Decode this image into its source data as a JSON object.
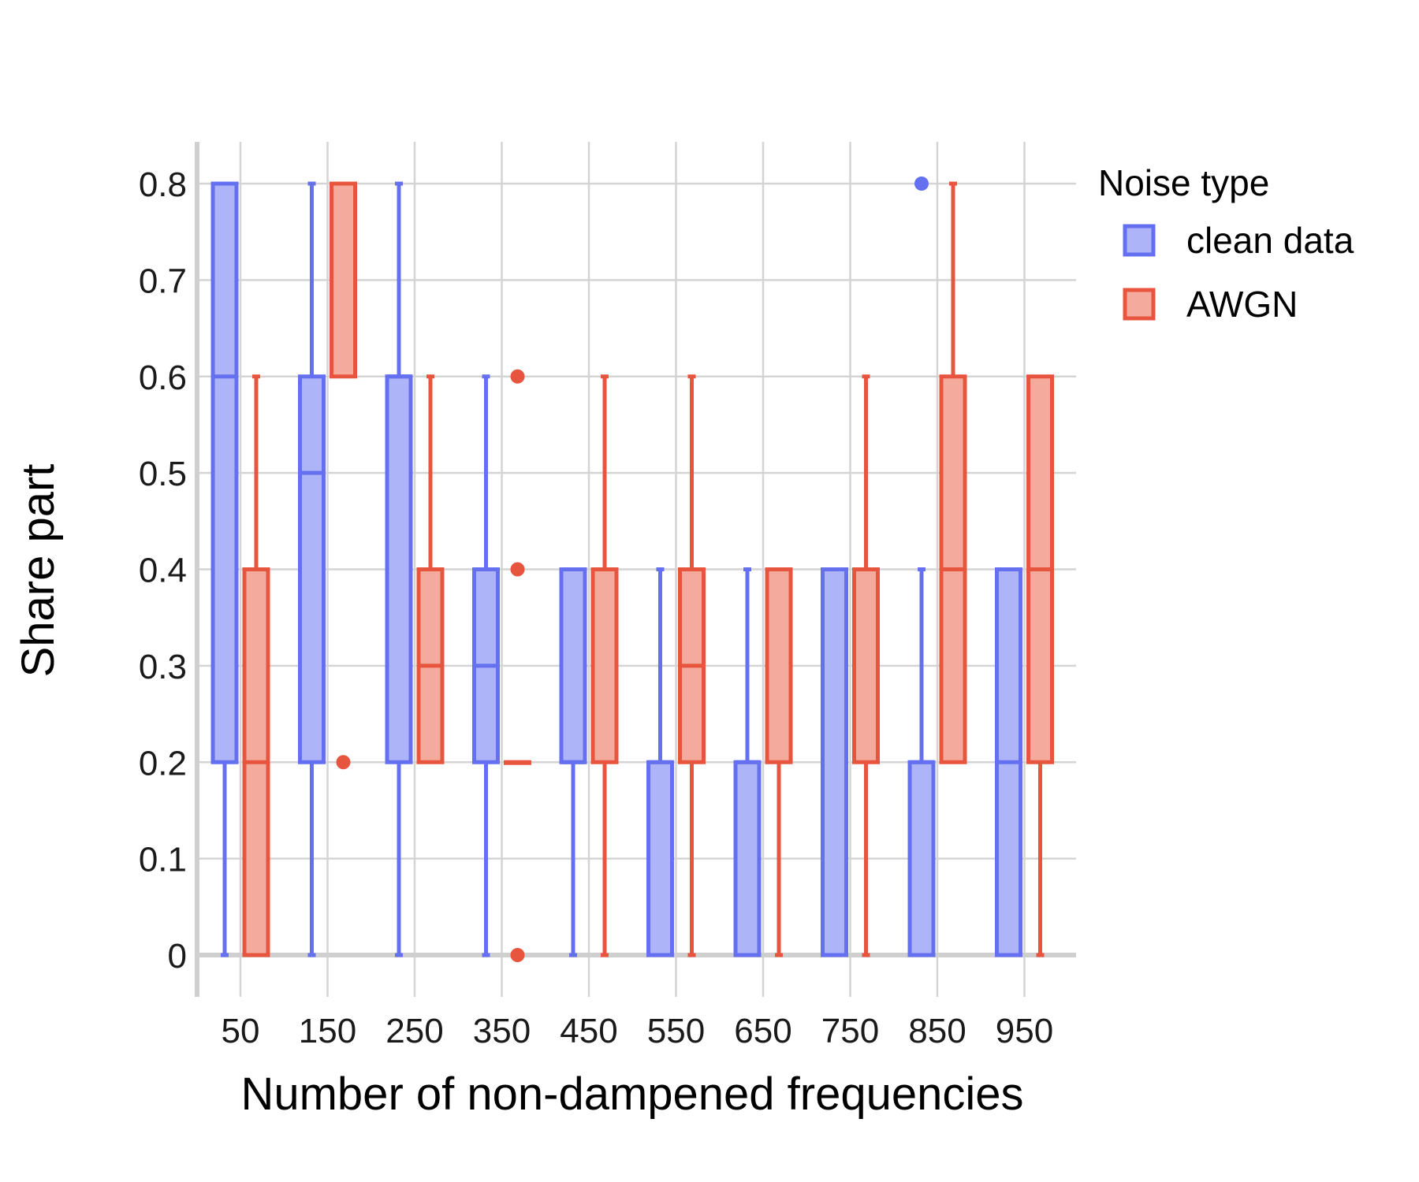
{
  "chart_data": {
    "type": "box",
    "title": "",
    "xlabel": "Number of non-dampened frequencies",
    "ylabel": "Share part",
    "categories": [
      "50",
      "150",
      "250",
      "350",
      "450",
      "550",
      "650",
      "750",
      "850",
      "950"
    ],
    "ylim": [
      -0.08,
      0.85
    ],
    "yticks": [
      0,
      0.1,
      0.2,
      0.3,
      0.4,
      0.5,
      0.6,
      0.7,
      0.8
    ],
    "ytick_labels": [
      "0",
      "0.1",
      "0.2",
      "0.3",
      "0.4",
      "0.5",
      "0.6",
      "0.7",
      "0.8"
    ],
    "grid": true,
    "legend": {
      "title": "Noise type",
      "position": "right"
    },
    "series": [
      {
        "name": "clean data",
        "color": "#6470f0",
        "fill": "#aeb4f8",
        "boxes": [
          {
            "category": "50",
            "whisker_low": 0,
            "q1": 0.2,
            "median": 0.6,
            "q3": 0.8,
            "whisker_high": 0.8,
            "outliers": []
          },
          {
            "category": "150",
            "whisker_low": 0,
            "q1": 0.2,
            "median": 0.5,
            "q3": 0.6,
            "whisker_high": 0.8,
            "outliers": []
          },
          {
            "category": "250",
            "whisker_low": 0,
            "q1": 0.2,
            "median": 0.6,
            "q3": 0.6,
            "whisker_high": 0.8,
            "outliers": []
          },
          {
            "category": "350",
            "whisker_low": 0,
            "q1": 0.2,
            "median": 0.3,
            "q3": 0.4,
            "whisker_high": 0.6,
            "outliers": []
          },
          {
            "category": "450",
            "whisker_low": 0,
            "q1": 0.2,
            "median": 0.2,
            "q3": 0.4,
            "whisker_high": 0.4,
            "outliers": []
          },
          {
            "category": "550",
            "whisker_low": 0,
            "q1": 0,
            "median": 0.2,
            "q3": 0.2,
            "whisker_high": 0.4,
            "outliers": []
          },
          {
            "category": "650",
            "whisker_low": 0,
            "q1": 0,
            "median": 0.2,
            "q3": 0.2,
            "whisker_high": 0.4,
            "outliers": []
          },
          {
            "category": "750",
            "whisker_low": 0,
            "q1": 0,
            "median": 0,
            "q3": 0.4,
            "whisker_high": 0.4,
            "outliers": []
          },
          {
            "category": "850",
            "whisker_low": 0,
            "q1": 0,
            "median": 0.2,
            "q3": 0.2,
            "whisker_high": 0.4,
            "outliers": [
              0.8
            ]
          },
          {
            "category": "950",
            "whisker_low": 0,
            "q1": 0,
            "median": 0.2,
            "q3": 0.4,
            "whisker_high": 0.4,
            "outliers": []
          }
        ]
      },
      {
        "name": "AWGN",
        "color": "#e8553f",
        "fill": "#f5aa9e",
        "boxes": [
          {
            "category": "50",
            "whisker_low": 0,
            "q1": 0,
            "median": 0.2,
            "q3": 0.4,
            "whisker_high": 0.6,
            "outliers": []
          },
          {
            "category": "150",
            "whisker_low": 0.6,
            "q1": 0.6,
            "median": 0.8,
            "q3": 0.8,
            "whisker_high": 0.8,
            "outliers": [
              0.2
            ]
          },
          {
            "category": "250",
            "whisker_low": 0.2,
            "q1": 0.2,
            "median": 0.3,
            "q3": 0.4,
            "whisker_high": 0.6,
            "outliers": []
          },
          {
            "category": "350",
            "whisker_low": 0.2,
            "q1": 0.2,
            "median": 0.2,
            "q3": 0.2,
            "whisker_high": 0.2,
            "outliers": [
              0,
              0.4,
              0.6
            ]
          },
          {
            "category": "450",
            "whisker_low": 0,
            "q1": 0.2,
            "median": 0.4,
            "q3": 0.4,
            "whisker_high": 0.6,
            "outliers": []
          },
          {
            "category": "550",
            "whisker_low": 0,
            "q1": 0.2,
            "median": 0.3,
            "q3": 0.4,
            "whisker_high": 0.6,
            "outliers": []
          },
          {
            "category": "650",
            "whisker_low": 0,
            "q1": 0.2,
            "median": 0.4,
            "q3": 0.4,
            "whisker_high": 0.4,
            "outliers": []
          },
          {
            "category": "750",
            "whisker_low": 0,
            "q1": 0.2,
            "median": 0.4,
            "q3": 0.4,
            "whisker_high": 0.6,
            "outliers": []
          },
          {
            "category": "850",
            "whisker_low": 0.2,
            "q1": 0.2,
            "median": 0.4,
            "q3": 0.6,
            "whisker_high": 0.8,
            "outliers": []
          },
          {
            "category": "950",
            "whisker_low": 0,
            "q1": 0.2,
            "median": 0.4,
            "q3": 0.6,
            "whisker_high": 0.6,
            "outliers": []
          }
        ]
      }
    ]
  }
}
